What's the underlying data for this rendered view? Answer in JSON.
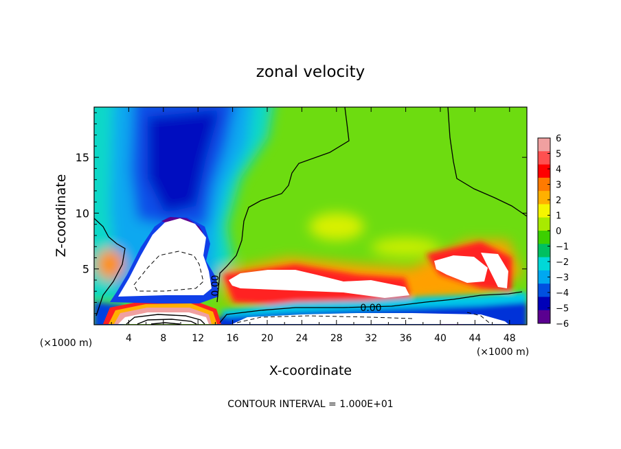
{
  "chart_data": {
    "type": "heatmap",
    "title": "zonal velocity",
    "xlabel": "X-coordinate",
    "ylabel": "Z-coordinate",
    "x_unit_left": "(×1000 m)",
    "x_unit_right": "(×1000 m)",
    "xlim": [
      0,
      50
    ],
    "ylim": [
      0,
      19.5
    ],
    "x_ticks": [
      4,
      8,
      12,
      16,
      20,
      24,
      28,
      32,
      36,
      40,
      44,
      48
    ],
    "y_ticks": [
      5,
      10,
      15
    ],
    "colorbar": {
      "levels": [
        6,
        5,
        4,
        3,
        2,
        1,
        0,
        -1,
        -2,
        -3,
        -4,
        -5,
        -6
      ],
      "colors": [
        "#f0a0a0",
        "#ff5050",
        "#ff0000",
        "#ff7a00",
        "#ffb000",
        "#f5f500",
        "#a8ea00",
        "#3cd000",
        "#00c060",
        "#00d8d8",
        "#00a8f0",
        "#0050e0",
        "#0000b8",
        "#5a0090"
      ]
    },
    "contour_label": "0.00",
    "footer": "CONTOUR INTERVAL = 1.000E+01"
  }
}
